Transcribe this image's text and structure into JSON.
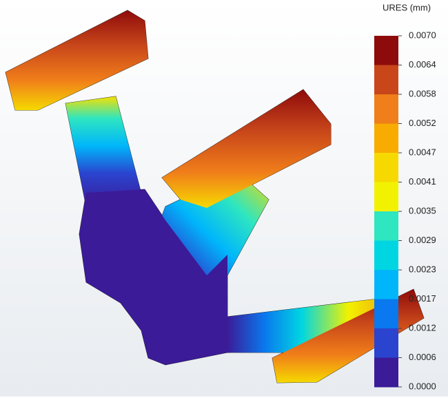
{
  "legend": {
    "title": "URES (mm)",
    "labels": [
      "0.0070",
      "0.0064",
      "0.0058",
      "0.0052",
      "0.0047",
      "0.0041",
      "0.0035",
      "0.0029",
      "0.0023",
      "0.0017",
      "0.0012",
      "0.0006",
      "0.0000"
    ],
    "colors": [
      "#8e0b0b",
      "#c8461a",
      "#f07e1a",
      "#f8ab00",
      "#f6d900",
      "#f2f200",
      "#2ee6c0",
      "#00d6e2",
      "#00b6fb",
      "#0a78ee",
      "#2a44cf",
      "#3b1b98"
    ]
  }
}
